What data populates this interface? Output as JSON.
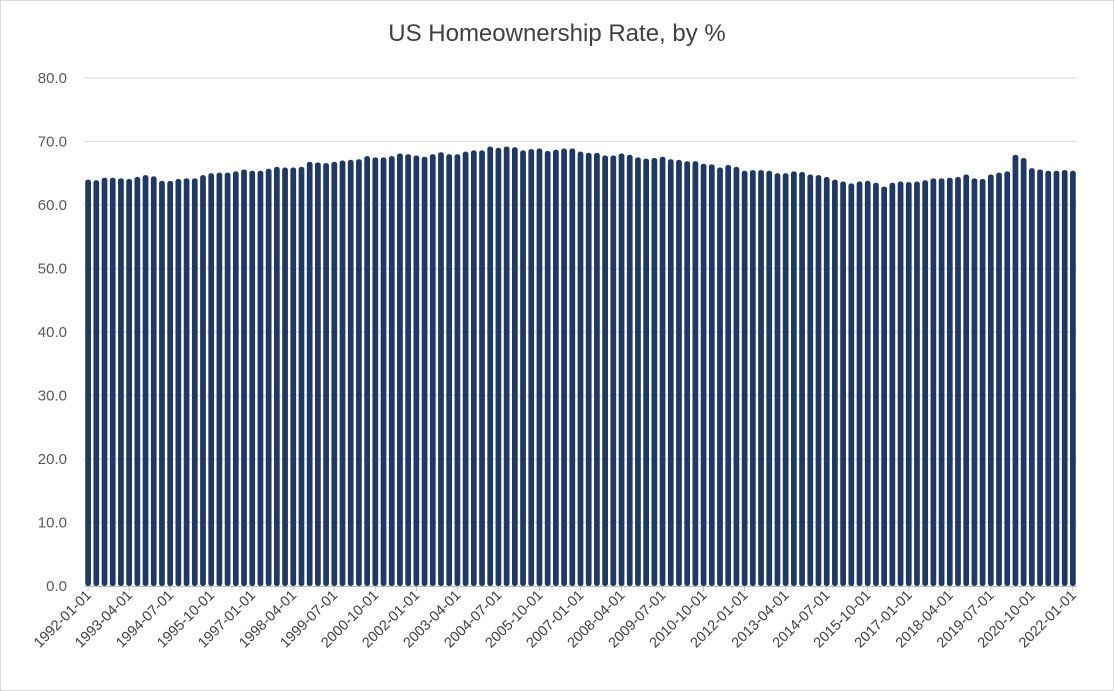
{
  "chart_data": {
    "type": "bar",
    "title": "US Homeownership Rate, by %",
    "xlabel": "",
    "ylabel": "",
    "ylim": [
      0,
      80
    ],
    "y_ticks": [
      "0.0",
      "10.0",
      "20.0",
      "30.0",
      "40.0",
      "50.0",
      "60.0",
      "70.0",
      "80.0"
    ],
    "x_tick_labels": [
      "1992-01-01",
      "1993-04-01",
      "1994-07-01",
      "1995-10-01",
      "1997-01-01",
      "1998-04-01",
      "1999-07-01",
      "2000-10-01",
      "2002-01-01",
      "2003-04-01",
      "2004-07-01",
      "2005-10-01",
      "2007-01-01",
      "2008-04-01",
      "2009-07-01",
      "2010-10-01",
      "2012-01-01",
      "2013-04-01",
      "2014-07-01",
      "2015-10-01",
      "2017-01-01",
      "2018-04-01",
      "2019-07-01",
      "2020-10-01",
      "2022-01-01"
    ],
    "grid": true,
    "legend": "none",
    "bar_color": "#203864",
    "categories": [
      "1992-01-01",
      "1992-04-01",
      "1992-07-01",
      "1992-10-01",
      "1993-01-01",
      "1993-04-01",
      "1993-07-01",
      "1993-10-01",
      "1994-01-01",
      "1994-04-01",
      "1994-07-01",
      "1994-10-01",
      "1995-01-01",
      "1995-04-01",
      "1995-07-01",
      "1995-10-01",
      "1996-01-01",
      "1996-04-01",
      "1996-07-01",
      "1996-10-01",
      "1997-01-01",
      "1997-04-01",
      "1997-07-01",
      "1997-10-01",
      "1998-01-01",
      "1998-04-01",
      "1998-07-01",
      "1998-10-01",
      "1999-01-01",
      "1999-04-01",
      "1999-07-01",
      "1999-10-01",
      "2000-01-01",
      "2000-04-01",
      "2000-07-01",
      "2000-10-01",
      "2001-01-01",
      "2001-04-01",
      "2001-07-01",
      "2001-10-01",
      "2002-01-01",
      "2002-04-01",
      "2002-07-01",
      "2002-10-01",
      "2003-01-01",
      "2003-04-01",
      "2003-07-01",
      "2003-10-01",
      "2004-01-01",
      "2004-04-01",
      "2004-07-01",
      "2004-10-01",
      "2005-01-01",
      "2005-04-01",
      "2005-07-01",
      "2005-10-01",
      "2006-01-01",
      "2006-04-01",
      "2006-07-01",
      "2006-10-01",
      "2007-01-01",
      "2007-04-01",
      "2007-07-01",
      "2007-10-01",
      "2008-01-01",
      "2008-04-01",
      "2008-07-01",
      "2008-10-01",
      "2009-01-01",
      "2009-04-01",
      "2009-07-01",
      "2009-10-01",
      "2010-01-01",
      "2010-04-01",
      "2010-07-01",
      "2010-10-01",
      "2011-01-01",
      "2011-04-01",
      "2011-07-01",
      "2011-10-01",
      "2012-01-01",
      "2012-04-01",
      "2012-07-01",
      "2012-10-01",
      "2013-01-01",
      "2013-04-01",
      "2013-07-01",
      "2013-10-01",
      "2014-01-01",
      "2014-04-01",
      "2014-07-01",
      "2014-10-01",
      "2015-01-01",
      "2015-04-01",
      "2015-07-01",
      "2015-10-01",
      "2016-01-01",
      "2016-04-01",
      "2016-07-01",
      "2016-10-01",
      "2017-01-01",
      "2017-04-01",
      "2017-07-01",
      "2017-10-01",
      "2018-01-01",
      "2018-04-01",
      "2018-07-01",
      "2018-10-01",
      "2019-01-01",
      "2019-04-01",
      "2019-07-01",
      "2019-10-01",
      "2020-01-01",
      "2020-04-01",
      "2020-07-01",
      "2020-10-01",
      "2021-01-01",
      "2021-04-01",
      "2021-07-01",
      "2021-10-01",
      "2022-01-01"
    ],
    "values": [
      64.0,
      63.9,
      64.3,
      64.3,
      64.2,
      64.1,
      64.4,
      64.7,
      64.5,
      63.8,
      63.8,
      64.1,
      64.2,
      64.2,
      64.7,
      65.0,
      65.1,
      65.1,
      65.3,
      65.6,
      65.4,
      65.4,
      65.7,
      66.0,
      65.9,
      65.9,
      66.0,
      66.8,
      66.7,
      66.6,
      66.8,
      67.0,
      67.1,
      67.2,
      67.7,
      67.5,
      67.5,
      67.7,
      68.1,
      68.0,
      67.8,
      67.6,
      68.0,
      68.3,
      68.0,
      68.0,
      68.4,
      68.6,
      68.6,
      69.2,
      69.0,
      69.2,
      69.1,
      68.6,
      68.8,
      68.9,
      68.5,
      68.7,
      68.9,
      68.9,
      68.4,
      68.2,
      68.2,
      67.8,
      67.8,
      68.1,
      67.9,
      67.5,
      67.3,
      67.4,
      67.6,
      67.2,
      67.1,
      66.9,
      66.9,
      66.5,
      66.4,
      65.9,
      66.3,
      66.0,
      65.4,
      65.5,
      65.5,
      65.4,
      65.0,
      65.0,
      65.3,
      65.2,
      64.8,
      64.7,
      64.4,
      64.0,
      63.7,
      63.4,
      63.7,
      63.8,
      63.5,
      62.9,
      63.5,
      63.7,
      63.6,
      63.7,
      63.9,
      64.2,
      64.2,
      64.3,
      64.4,
      64.8,
      64.2,
      64.1,
      64.8,
      65.1,
      65.3,
      67.9,
      67.4,
      65.8,
      65.6,
      65.4,
      65.4,
      65.5,
      65.4
    ]
  }
}
